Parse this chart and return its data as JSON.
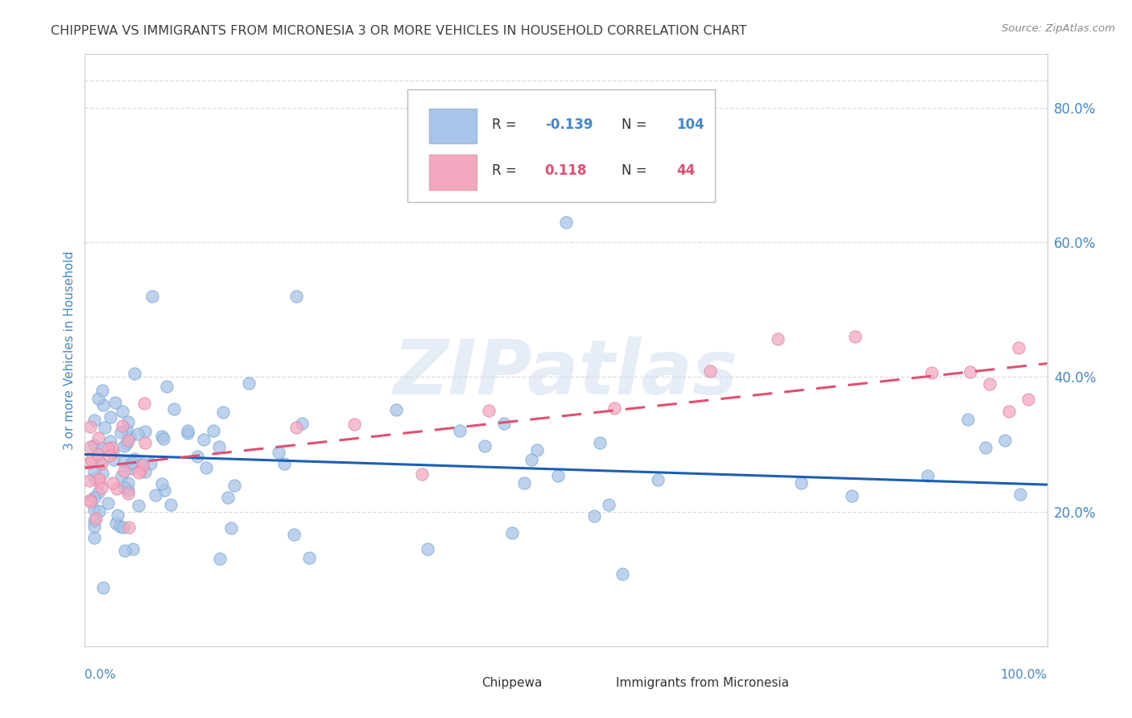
{
  "title": "CHIPPEWA VS IMMIGRANTS FROM MICRONESIA 3 OR MORE VEHICLES IN HOUSEHOLD CORRELATION CHART",
  "source": "Source: ZipAtlas.com",
  "ylabel": "3 or more Vehicles in Household",
  "watermark": "ZIPatlas",
  "legend_v1": "-0.139",
  "legend_nv1": "104",
  "legend_v2": "0.118",
  "legend_nv2": "44",
  "blue_color": "#a8c4e8",
  "pink_color": "#f4a8c0",
  "blue_line_color": "#1a5fb4",
  "pink_line_color": "#e05070",
  "title_color": "#404040",
  "source_color": "#888888",
  "axis_label_color": "#4488cc",
  "grid_color": "#dddddd",
  "right_yticks": [
    0.2,
    0.4,
    0.6,
    0.8
  ],
  "right_yticklabels": [
    "20.0%",
    "40.0%",
    "60.0%",
    "80.0%"
  ],
  "xlim": [
    0.0,
    1.0
  ],
  "ylim": [
    0.0,
    0.88
  ],
  "blue_intercept": 0.285,
  "blue_slope": -0.045,
  "pink_intercept": 0.265,
  "pink_slope": 0.155
}
